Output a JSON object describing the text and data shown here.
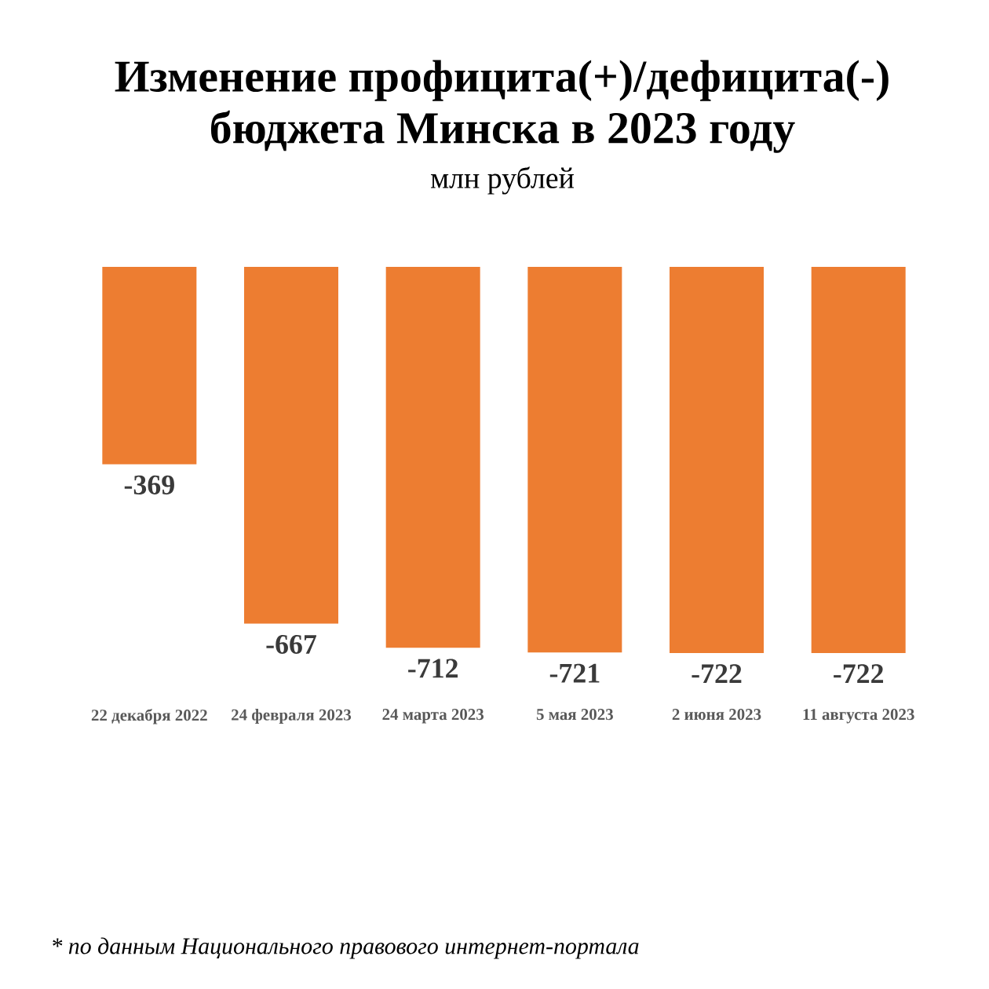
{
  "chart_data": {
    "type": "bar",
    "title": "Изменение профицита(+)/дефицита(-) бюджета Минска в 2023 году",
    "subtitle": "млн рублей",
    "categories": [
      "22 декабря 2022",
      "24 февраля 2023",
      "24 марта 2023",
      "5 мая 2023",
      "2 июня 2023",
      "11 августа 2023"
    ],
    "values": [
      -369,
      -667,
      -712,
      -721,
      -722,
      -722
    ],
    "color": "#ed7d31",
    "data_labels": true,
    "annotations": [
      "* по данным Национального правового интернет-портала"
    ]
  }
}
